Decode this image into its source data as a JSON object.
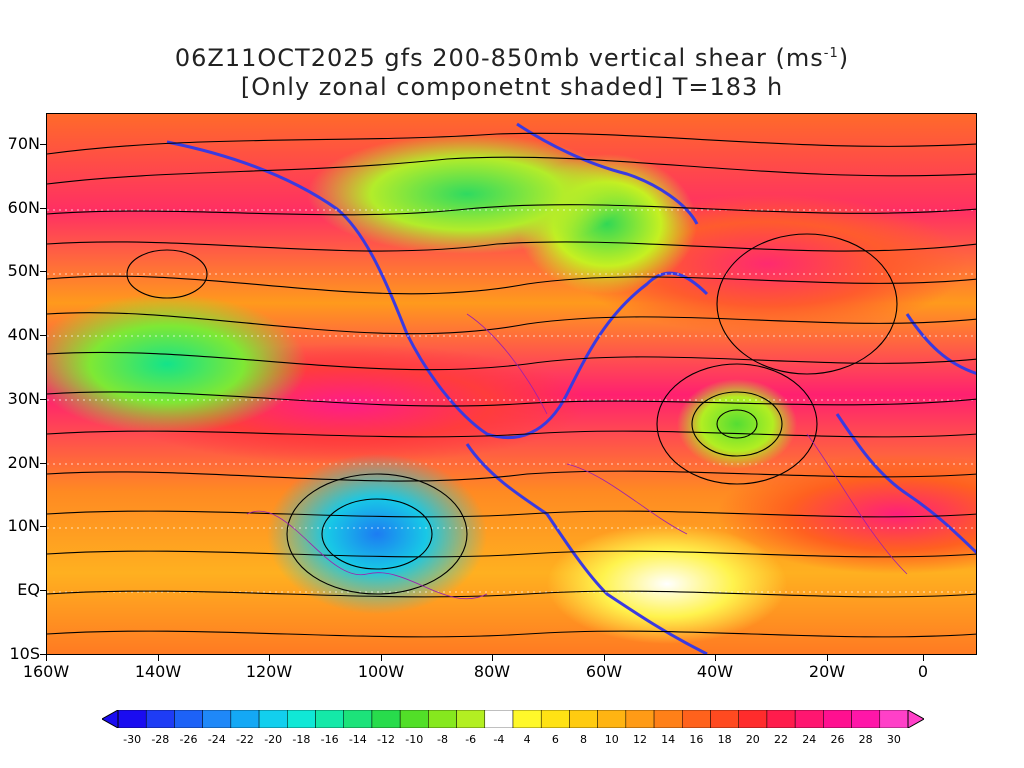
{
  "title": {
    "line1_prefix": "06Z11OCT2025 gfs 200-850mb vertical shear (ms",
    "line1_sup": "-1",
    "line1_suffix": ")",
    "line2": "[Only zonal componetnt shaded] T=183 h"
  },
  "axes": {
    "lat_labels": [
      "70N",
      "60N",
      "50N",
      "40N",
      "30N",
      "20N",
      "10N",
      "EQ",
      "10S"
    ],
    "lon_labels": [
      "160W",
      "140W",
      "120W",
      "100W",
      "80W",
      "60W",
      "40W",
      "20W",
      "0"
    ]
  },
  "colorbar": {
    "labels": [
      "-30",
      "-28",
      "-26",
      "-24",
      "-22",
      "-20",
      "-18",
      "-16",
      "-14",
      "-12",
      "-10",
      "-8",
      "-6",
      "-4",
      "4",
      "6",
      "8",
      "10",
      "12",
      "14",
      "16",
      "18",
      "20",
      "22",
      "24",
      "26",
      "28",
      "30"
    ],
    "colors": [
      "#1a0cf0",
      "#1e3cf5",
      "#1d62f7",
      "#1f88f8",
      "#14a8f5",
      "#12cfee",
      "#10e8d6",
      "#14e9a8",
      "#1ce37a",
      "#28dc4c",
      "#52df28",
      "#86e81e",
      "#b3ef22",
      "#ffffff",
      "#fff82a",
      "#ffe214",
      "#ffcb10",
      "#ffb412",
      "#ff9b16",
      "#ff8018",
      "#ff621c",
      "#ff4a20",
      "#ff2c2c",
      "#ff1c4c",
      "#ff1670",
      "#ff1090",
      "#ff16a8",
      "#ff40c8"
    ]
  },
  "map": {
    "shading_colors": {
      "shear_high": "#ff1c88",
      "shear_mid": "#ff8018",
      "shear_low": "#fff82a",
      "easterly_shear": "#1ce37a",
      "easterly_strong": "#1d62f7"
    },
    "coast_color": "#3a3ae0",
    "contour_color": "#9b1fb0",
    "streamline_color": "#000000"
  }
}
